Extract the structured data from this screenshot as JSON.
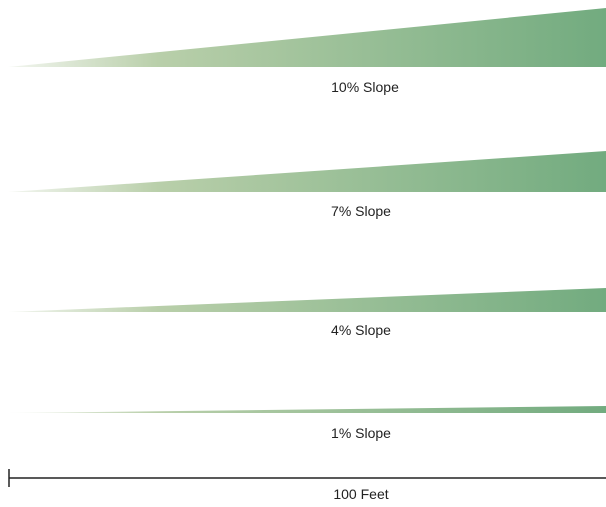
{
  "colors": {
    "wedge_start": "#f3f6f0",
    "wedge_end": "#72ab7f",
    "scale_line": "#222222"
  },
  "slopes": [
    {
      "label": "10% Slope",
      "percent": 10
    },
    {
      "label": "7% Slope",
      "percent": 7
    },
    {
      "label": "4% Slope",
      "percent": 4
    },
    {
      "label": "1% Slope",
      "percent": 1
    }
  ],
  "scale": {
    "label": "100 Feet",
    "length_feet": 100
  }
}
